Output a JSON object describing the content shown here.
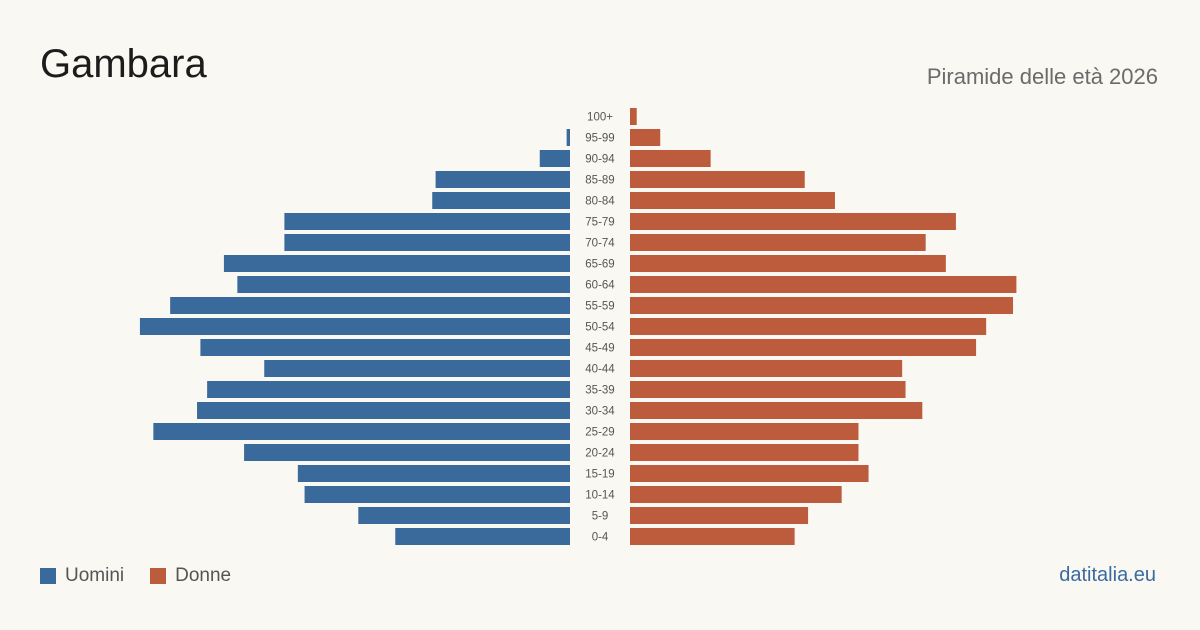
{
  "header": {
    "title": "Gambara",
    "subtitle": "Piramide delle età 2026"
  },
  "legend": {
    "items": [
      {
        "label": "Uomini",
        "color": "#3a6a9c"
      },
      {
        "label": "Donne",
        "color": "#bc5c3c"
      }
    ]
  },
  "footer": {
    "brand": "datitalia.eu"
  },
  "chart_data": {
    "type": "bar",
    "orientation": "horizontal-pyramid",
    "categories": [
      "100+",
      "95-99",
      "90-94",
      "85-89",
      "80-84",
      "75-79",
      "70-74",
      "65-69",
      "60-64",
      "55-59",
      "50-54",
      "45-49",
      "40-44",
      "35-39",
      "30-34",
      "25-29",
      "20-24",
      "15-19",
      "10-14",
      "5-9",
      "0-4"
    ],
    "series": [
      {
        "name": "Uomini",
        "color": "#3a6a9c",
        "values": [
          0,
          1,
          9,
          40,
          41,
          85,
          85,
          103,
          99,
          119,
          128,
          110,
          91,
          108,
          111,
          124,
          97,
          81,
          79,
          63,
          52
        ]
      },
      {
        "name": "Donne",
        "color": "#bc5c3c",
        "values": [
          2,
          9,
          24,
          52,
          61,
          97,
          88,
          94,
          115,
          114,
          106,
          103,
          81,
          82,
          87,
          68,
          68,
          71,
          63,
          53,
          49
        ]
      }
    ],
    "grid": false,
    "legend_position": "bottom-left"
  }
}
